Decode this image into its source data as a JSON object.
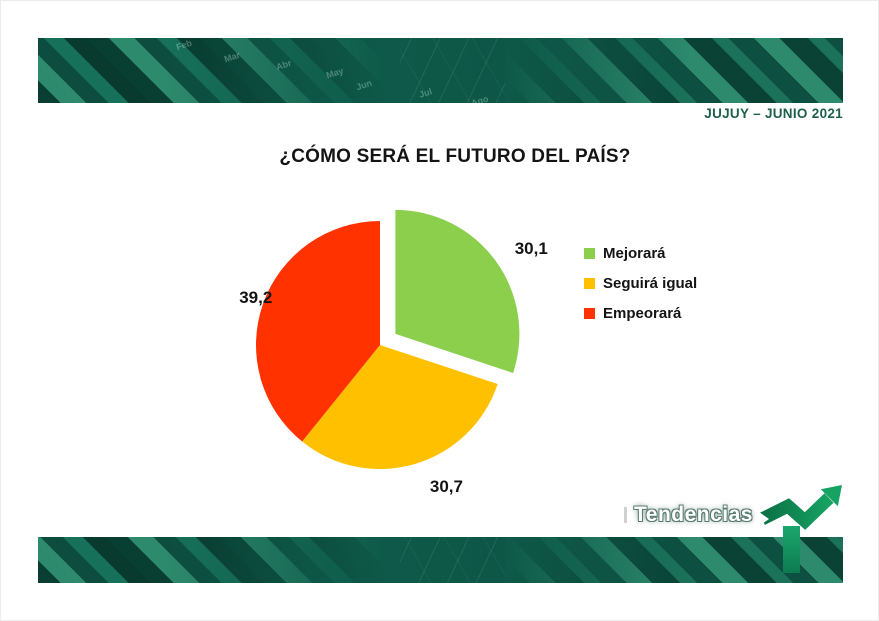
{
  "slide": {
    "header_badge": "JUJUY – JUNIO 2021",
    "title": "¿CÓMO SERÁ EL FUTURO DEL PAÍS?"
  },
  "banner": {
    "watermark_months": [
      "Feb",
      "Mar",
      "Abr",
      "May",
      "Jun",
      "Jul",
      "Ago"
    ]
  },
  "logo": {
    "text": "Tendencias"
  },
  "colors": {
    "banner_base": "#0d4f41",
    "banner_stripe_light": "#2e8a6c",
    "banner_stripe_dark": "#083d31",
    "header_text": "#1e5f4c",
    "logo_arrow_dark": "#0a7044",
    "logo_arrow_light": "#16a263"
  },
  "chart_data": {
    "type": "pie",
    "title": "¿CÓMO SERÁ EL FUTURO DEL PAÍS?",
    "direction": "clockwise",
    "start_angle_deg": 0,
    "legend_position": "right",
    "values_are_percent": true,
    "slices": [
      {
        "label": "Mejorará",
        "value": 30.1,
        "value_label": "30,1",
        "color": "#8CCF4D",
        "exploded": true
      },
      {
        "label": "Seguirá igual",
        "value": 30.7,
        "value_label": "30,7",
        "color": "#FFC000",
        "exploded": false
      },
      {
        "label": "Empeorará",
        "value": 39.2,
        "value_label": "39,2",
        "color": "#FF3200",
        "exploded": false
      }
    ]
  }
}
